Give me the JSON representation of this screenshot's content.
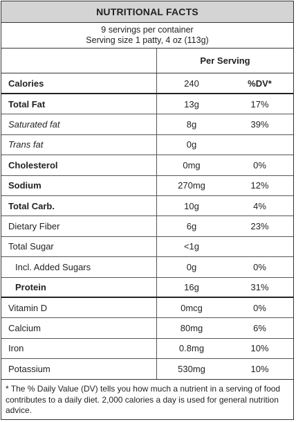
{
  "title": "NUTRITIONAL FACTS",
  "servings_line": "9 servings per container",
  "serving_size_line": "Serving size 1 patty, 4 oz (113g)",
  "per_serving_header": "Per Serving",
  "calories": {
    "label": "Calories",
    "value": "240",
    "dv_header": "%DV*"
  },
  "rows": [
    {
      "label": "Total Fat",
      "amount": "13g",
      "dv": "17%"
    },
    {
      "label": "Saturated fat",
      "amount": "8g",
      "dv": "39%"
    },
    {
      "label": "Trans fat",
      "amount": "0g",
      "dv": ""
    },
    {
      "label": "Cholesterol",
      "amount": "0mg",
      "dv": "0%"
    },
    {
      "label": "Sodium",
      "amount": "270mg",
      "dv": "12%"
    },
    {
      "label": "Total Carb.",
      "amount": "10g",
      "dv": "4%"
    },
    {
      "label": "Dietary Fiber",
      "amount": "6g",
      "dv": "23%"
    },
    {
      "label": "Total Sugar",
      "amount": "<1g",
      "dv": ""
    },
    {
      "label": "Incl. Added Sugars",
      "amount": "0g",
      "dv": "0%"
    },
    {
      "label": "Protein",
      "amount": "16g",
      "dv": "31%"
    },
    {
      "label": "Vitamin D",
      "amount": "0mcg",
      "dv": "0%"
    },
    {
      "label": "Calcium",
      "amount": "80mg",
      "dv": "6%"
    },
    {
      "label": "Iron",
      "amount": "0.8mg",
      "dv": "10%"
    },
    {
      "label": "Potassium",
      "amount": "530mg",
      "dv": "10%"
    }
  ],
  "footnote": "* The % Daily Value (DV) tells you how much a nutrient in a serving of food contributes to a daily diet. 2,000 calories a day is used for general nutrition advice."
}
